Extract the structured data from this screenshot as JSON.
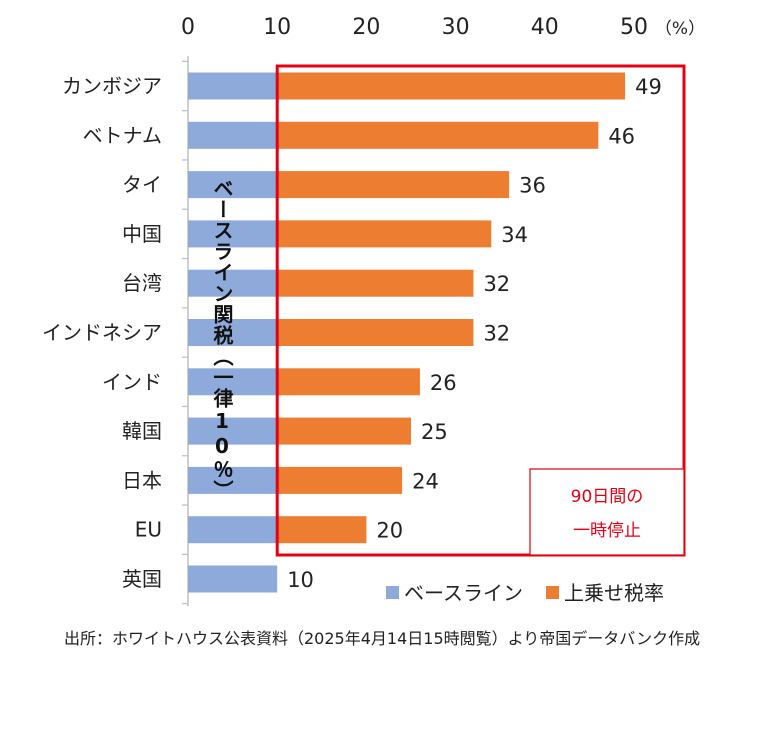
{
  "chart_data": {
    "type": "bar",
    "orientation": "horizontal",
    "stacked": true,
    "unit_label": "（%）",
    "xlim": [
      0,
      50
    ],
    "x_ticks": [
      0,
      10,
      20,
      30,
      40,
      50
    ],
    "categories": [
      "カンボジア",
      "ベトナム",
      "タイ",
      "中国",
      "台湾",
      "インドネシア",
      "インド",
      "韓国",
      "日本",
      "EU",
      "英国"
    ],
    "series": [
      {
        "name": "ベースライン",
        "color": "#8eaadb",
        "values": [
          10,
          10,
          10,
          10,
          10,
          10,
          10,
          10,
          10,
          10,
          10
        ]
      },
      {
        "name": "上乗せ税率",
        "color": "#ed7d31",
        "values": [
          39,
          36,
          26,
          24,
          22,
          22,
          16,
          15,
          14,
          10,
          0
        ]
      }
    ],
    "totals": [
      49,
      46,
      36,
      34,
      32,
      32,
      26,
      25,
      24,
      20,
      10
    ],
    "baseline_annotation": "ベースライン関税（一律10％）",
    "highlight_note": [
      "90日間の",
      "一時停止"
    ],
    "highlight_color": "#e60012"
  },
  "source_text": "出所：ホワイトハウス公表資料（2025年4月14日15時閲覧）より帝国データバンク作成"
}
